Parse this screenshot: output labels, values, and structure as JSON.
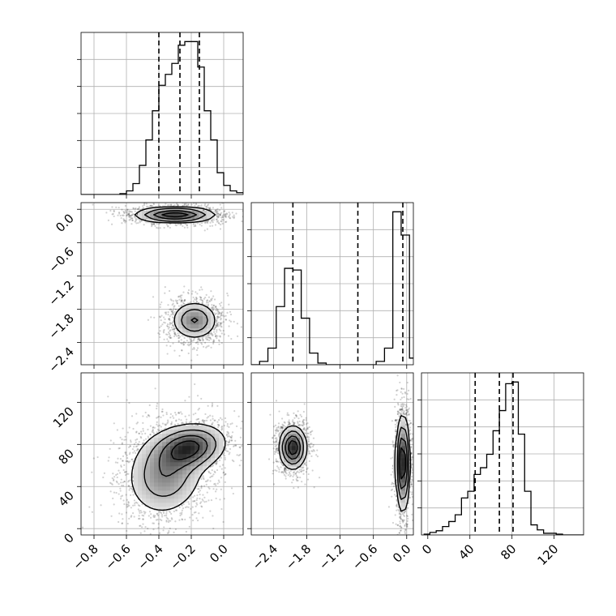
{
  "chart_data": {
    "type": "corner",
    "grid": true,
    "parameters": [
      {
        "id": "p1",
        "range": [
          -0.88,
          0.12
        ],
        "ticks": [
          -0.8,
          -0.6,
          -0.4,
          -0.2,
          0.0
        ],
        "tick_labels": [
          "−0.8",
          "−0.6",
          "−0.4",
          "−0.2",
          "0.0"
        ]
      },
      {
        "id": "p2",
        "range": [
          -2.8,
          0.12
        ],
        "ticks": [
          -2.4,
          -1.8,
          -1.2,
          -0.6,
          0.0
        ],
        "tick_labels": [
          "−2.4",
          "−1.8",
          "−1.2",
          "−0.6",
          "0.0"
        ]
      },
      {
        "id": "p3",
        "range": [
          -6,
          148
        ],
        "ticks": [
          0,
          40,
          80,
          120
        ],
        "tick_labels": [
          "0",
          "40",
          "80",
          "120"
        ]
      }
    ],
    "histograms": [
      {
        "param": "p1",
        "bin_edges": [
          -0.92,
          -0.88,
          -0.84,
          -0.8,
          -0.76,
          -0.72,
          -0.68,
          -0.64,
          -0.6,
          -0.56,
          -0.52,
          -0.48,
          -0.44,
          -0.4,
          -0.36,
          -0.32,
          -0.28,
          -0.24,
          -0.2,
          -0.16,
          -0.12,
          -0.08,
          -0.04,
          0.0,
          0.04,
          0.08,
          0.12
        ],
        "counts": [
          0,
          0,
          0,
          0,
          0,
          0,
          0,
          0.005,
          0.02,
          0.06,
          0.16,
          0.3,
          0.46,
          0.6,
          0.66,
          0.72,
          0.82,
          0.84,
          0.84,
          0.7,
          0.46,
          0.3,
          0.12,
          0.05,
          0.02,
          0.01
        ],
        "quantiles": [
          -0.4,
          -0.27,
          -0.15
        ]
      },
      {
        "param": "p2",
        "bin_edges": [
          -2.8,
          -2.65,
          -2.5,
          -2.35,
          -2.2,
          -2.05,
          -1.9,
          -1.75,
          -1.6,
          -1.45,
          -1.3,
          -1.15,
          -1.0,
          -0.85,
          -0.7,
          -0.55,
          -0.4,
          -0.25,
          -0.1,
          0.05,
          0.12
        ],
        "counts": [
          0,
          0.02,
          0.1,
          0.35,
          0.58,
          0.57,
          0.28,
          0.07,
          0.01,
          0,
          0,
          0,
          0,
          0,
          0,
          0.02,
          0.1,
          0.92,
          0.78,
          0.04
        ],
        "quantiles": [
          -2.05,
          -0.88,
          -0.07
        ]
      },
      {
        "param": "p3",
        "bin_edges": [
          -4,
          2,
          8,
          14,
          20,
          26,
          32,
          38,
          44,
          50,
          56,
          62,
          68,
          74,
          80,
          86,
          92,
          98,
          104,
          110,
          116,
          122,
          128,
          134,
          140,
          146,
          152
        ],
        "counts": [
          0.005,
          0.015,
          0.025,
          0.05,
          0.08,
          0.12,
          0.22,
          0.26,
          0.36,
          0.4,
          0.48,
          0.62,
          0.74,
          0.9,
          0.91,
          0.6,
          0.26,
          0.06,
          0.03,
          0.01,
          0.01,
          0.005,
          0,
          0,
          0,
          0
        ],
        "quantiles": [
          45,
          68,
          81
        ]
      }
    ],
    "pairs": [
      {
        "x": "p1",
        "y": "p2",
        "modes": [
          {
            "cx": -0.3,
            "cy": -0.1,
            "sx": 0.12,
            "sy": 0.07,
            "rho": 0.0,
            "weight": 0.55
          },
          {
            "cx": -0.18,
            "cy": -2.0,
            "sx": 0.07,
            "sy": 0.17,
            "rho": 0.0,
            "weight": 0.45
          }
        ]
      },
      {
        "x": "p1",
        "y": "p3",
        "modes": [
          {
            "cx": -0.36,
            "cy": 52,
            "sx": 0.12,
            "sy": 20,
            "rho": 0.1,
            "weight": 0.55
          },
          {
            "cx": -0.21,
            "cy": 77,
            "sx": 0.11,
            "sy": 11,
            "rho": 0.2,
            "weight": 0.45
          }
        ]
      },
      {
        "x": "p2",
        "y": "p3",
        "modes": [
          {
            "cx": -2.05,
            "cy": 77,
            "sx": 0.12,
            "sy": 10,
            "rho": 0.0,
            "weight": 0.45
          },
          {
            "cx": -0.07,
            "cy": 62,
            "sx": 0.06,
            "sy": 22,
            "rho": 0.0,
            "weight": 0.55
          }
        ]
      }
    ]
  }
}
